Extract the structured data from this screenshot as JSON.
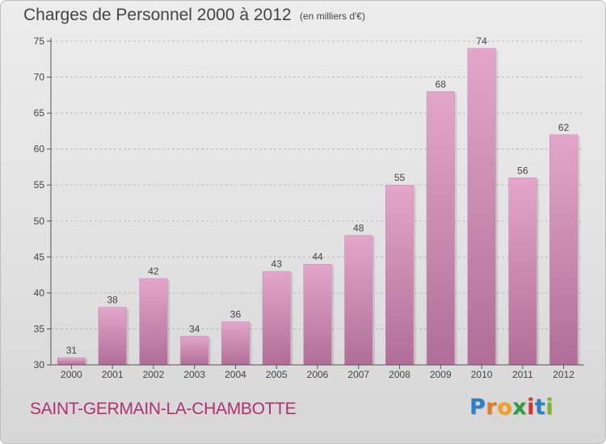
{
  "header": {
    "title": "Charges de Personnel 2000 à 2012",
    "subtitle": "(en milliers d'€)"
  },
  "commune": "SAINT-GERMAIN-LA-CHAMBOTTE",
  "brand": "Proxiti",
  "colors": {
    "bar_top": "#e3a6ca",
    "bar_bottom": "#b06e97",
    "axis": "#555555",
    "grid": "#bbbbbb",
    "commune_text": "#b0316f"
  },
  "chart_data": {
    "type": "bar",
    "title": "Charges de Personnel 2000 à 2012",
    "subtitle": "(en milliers d'€)",
    "categories": [
      "2000",
      "2001",
      "2002",
      "2003",
      "2004",
      "2005",
      "2006",
      "2007",
      "2008",
      "2009",
      "2010",
      "2011",
      "2012"
    ],
    "values": [
      31,
      38,
      42,
      34,
      36,
      43,
      44,
      48,
      55,
      68,
      74,
      56,
      62
    ],
    "ylim": [
      30,
      75
    ],
    "yticks": [
      30,
      35,
      40,
      45,
      50,
      55,
      60,
      65,
      70,
      75
    ],
    "grid": "horizontal dashed",
    "legend": "none"
  }
}
